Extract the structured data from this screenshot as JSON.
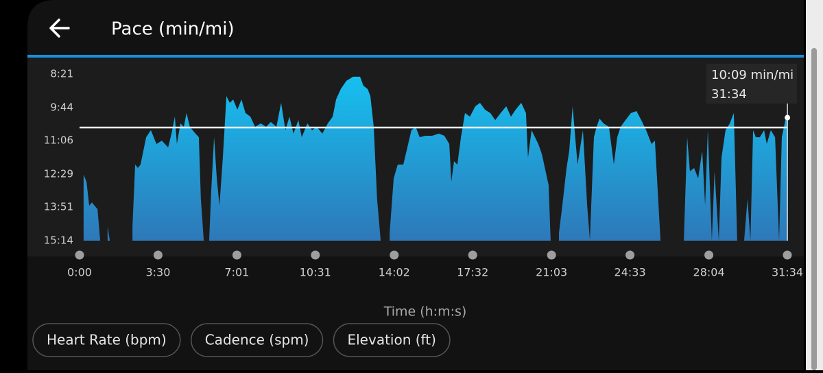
{
  "header": {
    "title": "Pace (min/mi)"
  },
  "chart_data": {
    "type": "area",
    "x_label": "Time (h:m:s)",
    "x": [
      0.18,
      0.31,
      0.43,
      0.55,
      0.67,
      0.8,
      0.92,
      1.1,
      1.25,
      1.35,
      1.8,
      2.36,
      2.48,
      2.6,
      2.72,
      2.97,
      3.18,
      3.43,
      3.67,
      3.95,
      4.1,
      4.25,
      4.34,
      4.5,
      4.65,
      4.77,
      4.92,
      5.17,
      5.32,
      5.41,
      5.54,
      5.66,
      5.78,
      5.87,
      6.0,
      6.12,
      6.24,
      6.39,
      6.55,
      6.7,
      6.85,
      7.04,
      7.22,
      7.4,
      7.62,
      7.83,
      8.08,
      8.32,
      8.53,
      8.78,
      8.99,
      9.18,
      9.36,
      9.54,
      9.76,
      9.91,
      10.16,
      10.37,
      10.58,
      10.83,
      11.07,
      11.29,
      11.44,
      11.65,
      11.9,
      12.2,
      12.51,
      12.66,
      12.85,
      12.97,
      13.12,
      13.27,
      13.43,
      13.6,
      13.83,
      14.01,
      14.19,
      14.44,
      14.62,
      14.8,
      14.99,
      15.17,
      15.42,
      15.72,
      16.03,
      16.27,
      16.49,
      16.58,
      16.7,
      16.85,
      17.01,
      17.19,
      17.41,
      17.65,
      17.86,
      18.08,
      18.32,
      18.54,
      18.78,
      19.03,
      19.24,
      19.45,
      19.7,
      19.91,
      20.0,
      20.16,
      20.46,
      20.62,
      20.92,
      21.01,
      21.2,
      21.38,
      21.53,
      21.72,
      21.84,
      21.99,
      22.21,
      22.45,
      22.64,
      22.76,
      22.94,
      23.06,
      23.19,
      23.37,
      23.61,
      23.83,
      23.98,
      24.13,
      24.35,
      24.59,
      24.84,
      25.05,
      25.27,
      25.51,
      25.66,
      25.91,
      26.4,
      26.95,
      27.1,
      27.22,
      27.41,
      27.59,
      27.77,
      27.9,
      28.02,
      28.2,
      28.32,
      28.51,
      28.63,
      28.81,
      29.0,
      29.18,
      29.33,
      29.5,
      29.64,
      29.79,
      29.92,
      30.04,
      30.16,
      30.34,
      30.53,
      30.65,
      30.83,
      31.02,
      31.2,
      31.32,
      31.48,
      31.57
    ],
    "values": [
      12.51,
      12.8,
      13.79,
      13.65,
      13.79,
      13.93,
      15.23,
      null,
      14.64,
      15.23,
      null,
      14.64,
      12.09,
      12.23,
      12.09,
      10.96,
      10.67,
      11.24,
      11.1,
      11.38,
      10.81,
      10.11,
      11.24,
      10.39,
      10.53,
      9.96,
      10.53,
      10.81,
      10.96,
      13.51,
      15.23,
      null,
      15.23,
      13.22,
      10.96,
      12.66,
      13.79,
      11.81,
      9.26,
      9.54,
      9.4,
      9.82,
      9.4,
      9.96,
      10.11,
      10.53,
      10.39,
      10.53,
      10.33,
      10.53,
      9.54,
      10.67,
      10.11,
      10.81,
      10.25,
      10.96,
      10.39,
      10.67,
      10.53,
      10.81,
      10.39,
      10.11,
      9.4,
      8.97,
      8.63,
      8.46,
      8.46,
      8.83,
      8.97,
      9.26,
      10.53,
      13.51,
      15.23,
      null,
      14.92,
      12.66,
      12.09,
      12.09,
      11.38,
      10.67,
      10.53,
      10.96,
      10.9,
      10.9,
      10.81,
      10.9,
      11.24,
      12.8,
      11.95,
      12.09,
      10.96,
      9.96,
      10.11,
      9.68,
      9.54,
      9.82,
      9.96,
      10.25,
      9.96,
      9.68,
      10.11,
      9.82,
      9.54,
      9.96,
      11.81,
      10.67,
      11.24,
      11.66,
      12.94,
      15.23,
      null,
      14.92,
      13.79,
      12.23,
      11.52,
      9.68,
      12.09,
      10.67,
      13.79,
      15.2,
      10.96,
      10.53,
      10.19,
      10.39,
      10.53,
      12.09,
      10.96,
      10.53,
      10.25,
      9.96,
      9.88,
      10.25,
      10.67,
      11.24,
      11.1,
      15.23,
      null,
      15.23,
      10.96,
      12.37,
      12.23,
      12.66,
      11.52,
      13.79,
      10.67,
      15.23,
      12.37,
      15.23,
      11.81,
      10.67,
      10.39,
      9.96,
      15.23,
      null,
      15.23,
      13.51,
      15.23,
      10.67,
      10.96,
      10.96,
      10.67,
      11.24,
      10.67,
      10.96,
      15.23,
      10.96,
      10.25,
      10.15
    ],
    "color": "#1ab6ea",
    "average": 10.56,
    "ylim": [
      15.2333,
      8.35
    ],
    "yticks": [
      {
        "value": 8.35,
        "label": "8:21"
      },
      {
        "value": 9.7333,
        "label": "9:44"
      },
      {
        "value": 11.1,
        "label": "11:06"
      },
      {
        "value": 12.4833,
        "label": "12:29"
      },
      {
        "value": 13.85,
        "label": "13:51"
      },
      {
        "value": 15.2333,
        "label": "15:14"
      }
    ],
    "xlim": [
      0,
      31.5667
    ],
    "xticks": [
      {
        "value": 0,
        "label": "0:00"
      },
      {
        "value": 3.5,
        "label": "3:30"
      },
      {
        "value": 7.0167,
        "label": "7:01"
      },
      {
        "value": 10.5167,
        "label": "10:31"
      },
      {
        "value": 14.0333,
        "label": "14:02"
      },
      {
        "value": 17.5333,
        "label": "17:32"
      },
      {
        "value": 21.05,
        "label": "21:03"
      },
      {
        "value": 24.55,
        "label": "24:33"
      },
      {
        "value": 28.0667,
        "label": "28:04"
      },
      {
        "value": 31.5667,
        "label": "31:34"
      }
    ],
    "tooltip": [
      "10:09 min/mi",
      "31:34"
    ]
  },
  "buttons": [
    "Heart Rate (bpm)",
    "Cadence (spm)",
    "Elevation (ft)"
  ]
}
